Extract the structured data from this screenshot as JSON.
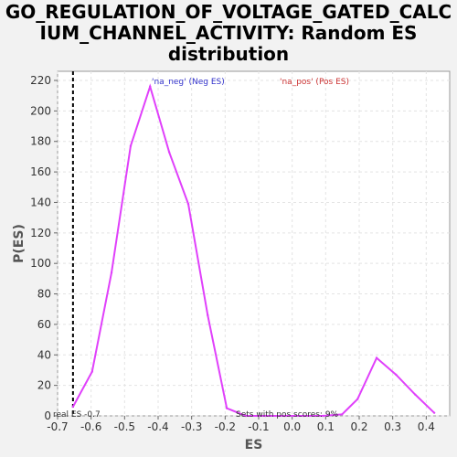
{
  "chart_data": {
    "type": "line",
    "title_lines": [
      "GO_REGULATION_OF_VOLTAGE_GATED_CALC",
      "IUM_CHANNEL_ACTIVITY: Random ES",
      "distribution"
    ],
    "xlabel": "ES",
    "ylabel": "P(ES)",
    "xlim": [
      -0.7,
      0.47
    ],
    "ylim": [
      0,
      226
    ],
    "xticks": [
      "-0.7",
      "-0.6",
      "-0.5",
      "-0.4",
      "-0.3",
      "-0.2",
      "-0.1",
      "0.0",
      "0.1",
      "0.2",
      "0.3",
      "0.4"
    ],
    "yticks": [
      "0",
      "20",
      "40",
      "60",
      "80",
      "100",
      "120",
      "140",
      "160",
      "180",
      "200",
      "220"
    ],
    "grid": true,
    "line_color": "#e040fb",
    "series": [
      {
        "name": "",
        "x": [
          -0.654,
          -0.597,
          -0.539,
          -0.482,
          -0.424,
          -0.367,
          -0.31,
          -0.252,
          -0.195,
          -0.138,
          -0.08,
          -0.023,
          0.035,
          0.092,
          0.149,
          0.195,
          0.252,
          0.31,
          0.367,
          0.424
        ],
        "y": [
          6,
          29,
          94,
          177,
          216,
          173,
          139,
          66,
          5,
          0,
          0,
          0,
          0,
          0,
          1,
          11,
          38,
          27,
          14,
          2
        ]
      }
    ],
    "legend": [
      {
        "label": "'na_neg' (Neg ES)",
        "color": "#3333cc"
      },
      {
        "label": "'na_pos' (Pos ES)",
        "color": "#cc3333"
      }
    ],
    "real_es": {
      "x": -0.654,
      "label": "real ES -0.7"
    },
    "annotation": "Sets with pos scores: 9%"
  }
}
